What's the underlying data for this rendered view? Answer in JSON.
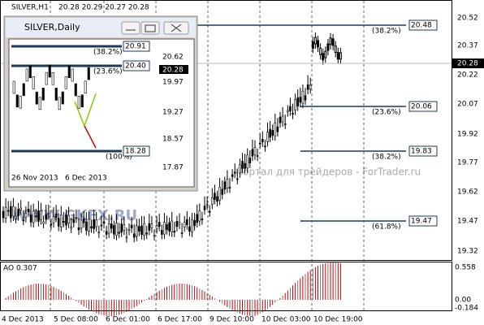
{
  "main": {
    "header": "SILVER,H1",
    "ohlc": "20.28 20.29 20.27 20.28",
    "price_ticks": [
      "20.52",
      "20.37",
      "20.22",
      "20.07",
      "19.92",
      "19.77",
      "19.62",
      "19.47",
      "19.32"
    ],
    "current_price": "20.28",
    "fib_levels": [
      {
        "pct": "(38.2%)",
        "price": "20.48"
      },
      {
        "pct": "(23.6%)",
        "price": "20.06"
      },
      {
        "pct": "(38.2%)",
        "price": "19.83"
      },
      {
        "pct": "(61.8%)",
        "price": "19.47"
      }
    ],
    "time_labels": [
      "4 Dec 2013",
      "5 Dec 08:00",
      "6 Dec 01:00",
      "6 Dec 17:00",
      "9 Dec 10:00",
      "10 Dec 03:00",
      "10 Dec 19:00"
    ],
    "watermark": "Портал для трейдеров - ForTrader.ru",
    "watermark2": "WWW.GKFX.RU",
    "indicator": "AO 0.307",
    "indicator_ticks": [
      "0.558",
      "0.00",
      "-0.184"
    ]
  },
  "inset": {
    "title": "SILVER,Daily",
    "price_ticks": [
      "20.62",
      "19.97",
      "19.27",
      "18.57",
      "17.87"
    ],
    "current_price": "20.28",
    "fib_levels": [
      {
        "pct": "(38.2%)",
        "price": "20.91"
      },
      {
        "pct": "(23.6%)",
        "price": "20.40"
      },
      {
        "pct": "(100%)",
        "price": "18.28"
      }
    ],
    "dates": [
      "26 Nov 2013",
      "6 Dec 2013"
    ]
  }
}
